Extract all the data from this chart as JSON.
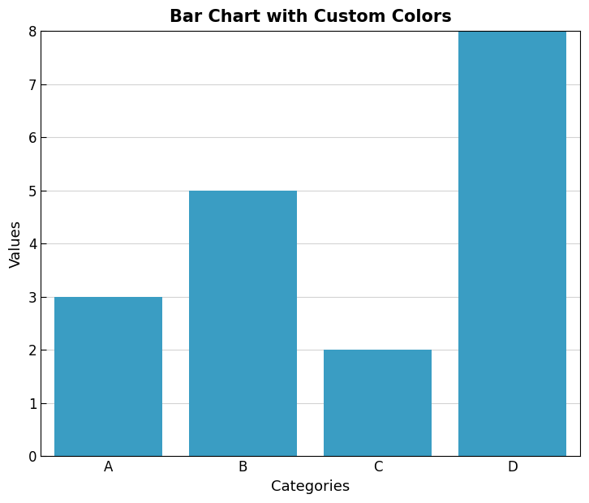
{
  "categories": [
    "A",
    "B",
    "C",
    "D"
  ],
  "values": [
    3,
    5,
    2,
    8
  ],
  "bar_color": "#3A9DC3",
  "title": "Bar Chart with Custom Colors",
  "xlabel": "Categories",
  "ylabel": "Values",
  "ylim": [
    0,
    8
  ],
  "yticks": [
    0,
    1,
    2,
    3,
    4,
    5,
    6,
    7,
    8
  ],
  "title_fontsize": 15,
  "label_fontsize": 13,
  "tick_fontsize": 12,
  "background_color": "#ffffff",
  "grid_color": "#d3d3d3",
  "bar_edge_color": "none",
  "bar_width": 0.8
}
